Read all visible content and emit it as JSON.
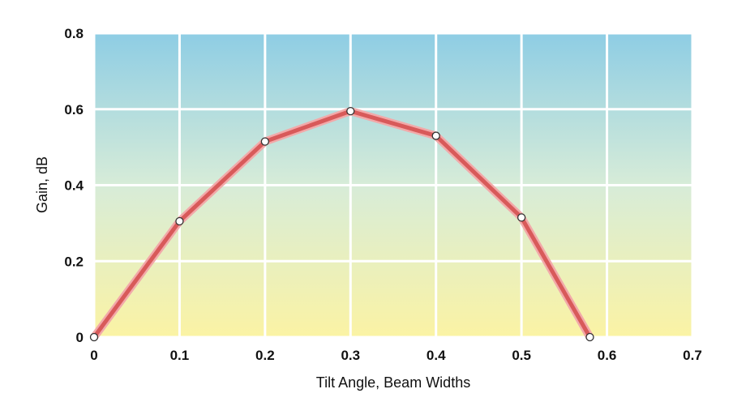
{
  "chart_data": {
    "type": "line",
    "title": "",
    "xlabel": "Tilt Angle, Beam Widths",
    "ylabel": "Gain, dB",
    "xlim": [
      0,
      0.7
    ],
    "ylim": [
      0,
      0.8
    ],
    "x_ticks": [
      "0",
      "0.1",
      "0.2",
      "0.3",
      "0.4",
      "0.5",
      "0.6",
      "0.7"
    ],
    "y_ticks": [
      "0",
      "0.2",
      "0.4",
      "0.6",
      "0.8"
    ],
    "grid": true,
    "legend": "none",
    "series": [
      {
        "x": [
          0,
          0.1,
          0.2,
          0.3,
          0.4,
          0.5,
          0.58
        ],
        "y": [
          0,
          0.305,
          0.515,
          0.595,
          0.53,
          0.315,
          0
        ]
      }
    ],
    "colors": {
      "line": "#d85a5a",
      "line_glow": "#f2a9a9",
      "marker_fill": "#ffffff",
      "marker_stroke": "#333333",
      "grid": "#ffffff",
      "background_top": "#8ecde4",
      "background_bottom": "#fbf3a4"
    }
  }
}
